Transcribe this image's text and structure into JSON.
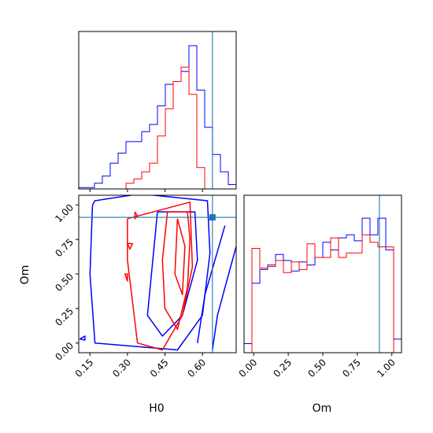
{
  "chart_data": {
    "type": "corner",
    "colors": {
      "series_a": "#0000ff",
      "series_b": "#ff0000",
      "truth": "#1f77b4"
    },
    "parameters": [
      "H0",
      "Om"
    ],
    "truth": {
      "H0": 0.64,
      "Om": 0.91
    },
    "panels": {
      "h0_marginal": {
        "xlim": [
          0.105,
          0.735
        ],
        "xticks": [
          0.15,
          0.3,
          0.45,
          0.6
        ],
        "yticks_shown": false,
        "bin_edges": [
          0.105,
          0.1365,
          0.168,
          0.1995,
          0.231,
          0.2625,
          0.294,
          0.3255,
          0.357,
          0.3885,
          0.42,
          0.4515,
          0.483,
          0.5145,
          0.546,
          0.5775,
          0.609,
          0.6405,
          0.672,
          0.7035,
          0.735
        ],
        "series_a_counts": [
          0.01,
          0.01,
          0.04,
          0.09,
          0.18,
          0.25,
          0.33,
          0.33,
          0.4,
          0.45,
          0.58,
          0.73,
          0.75,
          0.82,
          1.0,
          0.69,
          0.43,
          0.24,
          0.12,
          0.03
        ],
        "series_b_counts": [
          0,
          0,
          0,
          0,
          0,
          0,
          0.04,
          0.07,
          0.12,
          0.18,
          0.37,
          0.56,
          0.75,
          0.85,
          0.66,
          0.15,
          0,
          0,
          0,
          0
        ]
      },
      "om_marginal": {
        "xlim": [
          -0.07,
          1.07
        ],
        "xticks": [
          0.0,
          0.25,
          0.5,
          0.75,
          1.0
        ],
        "yticks_shown": false,
        "bin_edges": [
          -0.07,
          -0.013,
          0.044,
          0.101,
          0.158,
          0.215,
          0.272,
          0.329,
          0.386,
          0.443,
          0.5,
          0.557,
          0.614,
          0.671,
          0.728,
          0.785,
          0.842,
          0.899,
          0.956,
          1.013,
          1.07
        ],
        "series_a_counts": [
          0.06,
          0.46,
          0.55,
          0.58,
          0.65,
          0.61,
          0.54,
          0.6,
          0.58,
          0.63,
          0.73,
          0.68,
          0.76,
          0.78,
          0.74,
          0.89,
          0.78,
          0.89,
          0.68,
          0.09
        ],
        "series_b_counts": [
          0,
          0.69,
          0.56,
          0.57,
          0.61,
          0.53,
          0.6,
          0.55,
          0.72,
          0.63,
          0.63,
          0.76,
          0.63,
          0.66,
          0.66,
          0.78,
          0.73,
          0.7,
          0.7,
          0
        ]
      },
      "joint": {
        "xlim": [
          0.105,
          0.735
        ],
        "ylim": [
          -0.07,
          1.07
        ],
        "xticks": [
          0.15,
          0.3,
          0.45,
          0.6
        ],
        "yticks": [
          0.0,
          0.25,
          0.5,
          0.75,
          1.0
        ],
        "series_a_contours": [
          [
            [
              0.16,
              1.0
            ],
            [
              0.15,
              0.5
            ],
            [
              0.17,
              0.0
            ],
            [
              0.5,
              -0.05
            ],
            [
              0.6,
              0.2
            ],
            [
              0.63,
              0.65
            ],
            [
              0.62,
              1.03
            ],
            [
              0.35,
              1.08
            ],
            [
              0.17,
              1.03
            ],
            [
              0.16,
              1.0
            ]
          ],
          [
            [
              0.42,
              0.95
            ],
            [
              0.38,
              0.2
            ],
            [
              0.44,
              0.05
            ],
            [
              0.52,
              0.2
            ],
            [
              0.58,
              0.6
            ],
            [
              0.57,
              0.95
            ],
            [
              0.42,
              0.95
            ]
          ],
          [
            [
              0.69,
              0.85
            ],
            [
              0.65,
              0.6
            ],
            [
              0.61,
              0.35
            ],
            [
              0.58,
              0.0
            ]
          ],
          [
            [
              0.735,
              0.7
            ],
            [
              0.69,
              0.4
            ],
            [
              0.66,
              0.2
            ],
            [
              0.64,
              -0.05
            ]
          ],
          [
            [
              0.13,
              0.02
            ],
            [
              0.11,
              0.03
            ],
            [
              0.13,
              0.05
            ],
            [
              0.13,
              0.02
            ]
          ]
        ],
        "series_b_contours": [
          [
            [
              0.3,
              0.9
            ],
            [
              0.3,
              0.6
            ],
            [
              0.32,
              0.3
            ],
            [
              0.34,
              0.0
            ],
            [
              0.44,
              -0.05
            ],
            [
              0.52,
              0.2
            ],
            [
              0.56,
              0.55
            ],
            [
              0.55,
              1.02
            ],
            [
              0.3,
              0.9
            ]
          ],
          [
            [
              0.46,
              0.95
            ],
            [
              0.44,
              0.6
            ],
            [
              0.45,
              0.25
            ],
            [
              0.5,
              0.1
            ],
            [
              0.54,
              0.4
            ],
            [
              0.55,
              0.75
            ],
            [
              0.54,
              0.95
            ],
            [
              0.46,
              0.95
            ]
          ],
          [
            [
              0.5,
              0.9
            ],
            [
              0.49,
              0.5
            ],
            [
              0.52,
              0.35
            ],
            [
              0.53,
              0.7
            ],
            [
              0.5,
              0.9
            ]
          ],
          [
            [
              0.29,
              0.5
            ],
            [
              0.3,
              0.45
            ],
            [
              0.3,
              0.5
            ],
            [
              0.29,
              0.5
            ]
          ],
          [
            [
              0.33,
              0.95
            ],
            [
              0.34,
              0.92
            ],
            [
              0.33,
              0.9
            ],
            [
              0.33,
              0.95
            ]
          ],
          [
            [
              0.3,
              0.72
            ],
            [
              0.31,
              0.68
            ],
            [
              0.32,
              0.72
            ],
            [
              0.3,
              0.72
            ]
          ]
        ]
      }
    },
    "labels": {
      "x_h0": "H0",
      "x_om": "Om",
      "y_om": "Om"
    }
  }
}
